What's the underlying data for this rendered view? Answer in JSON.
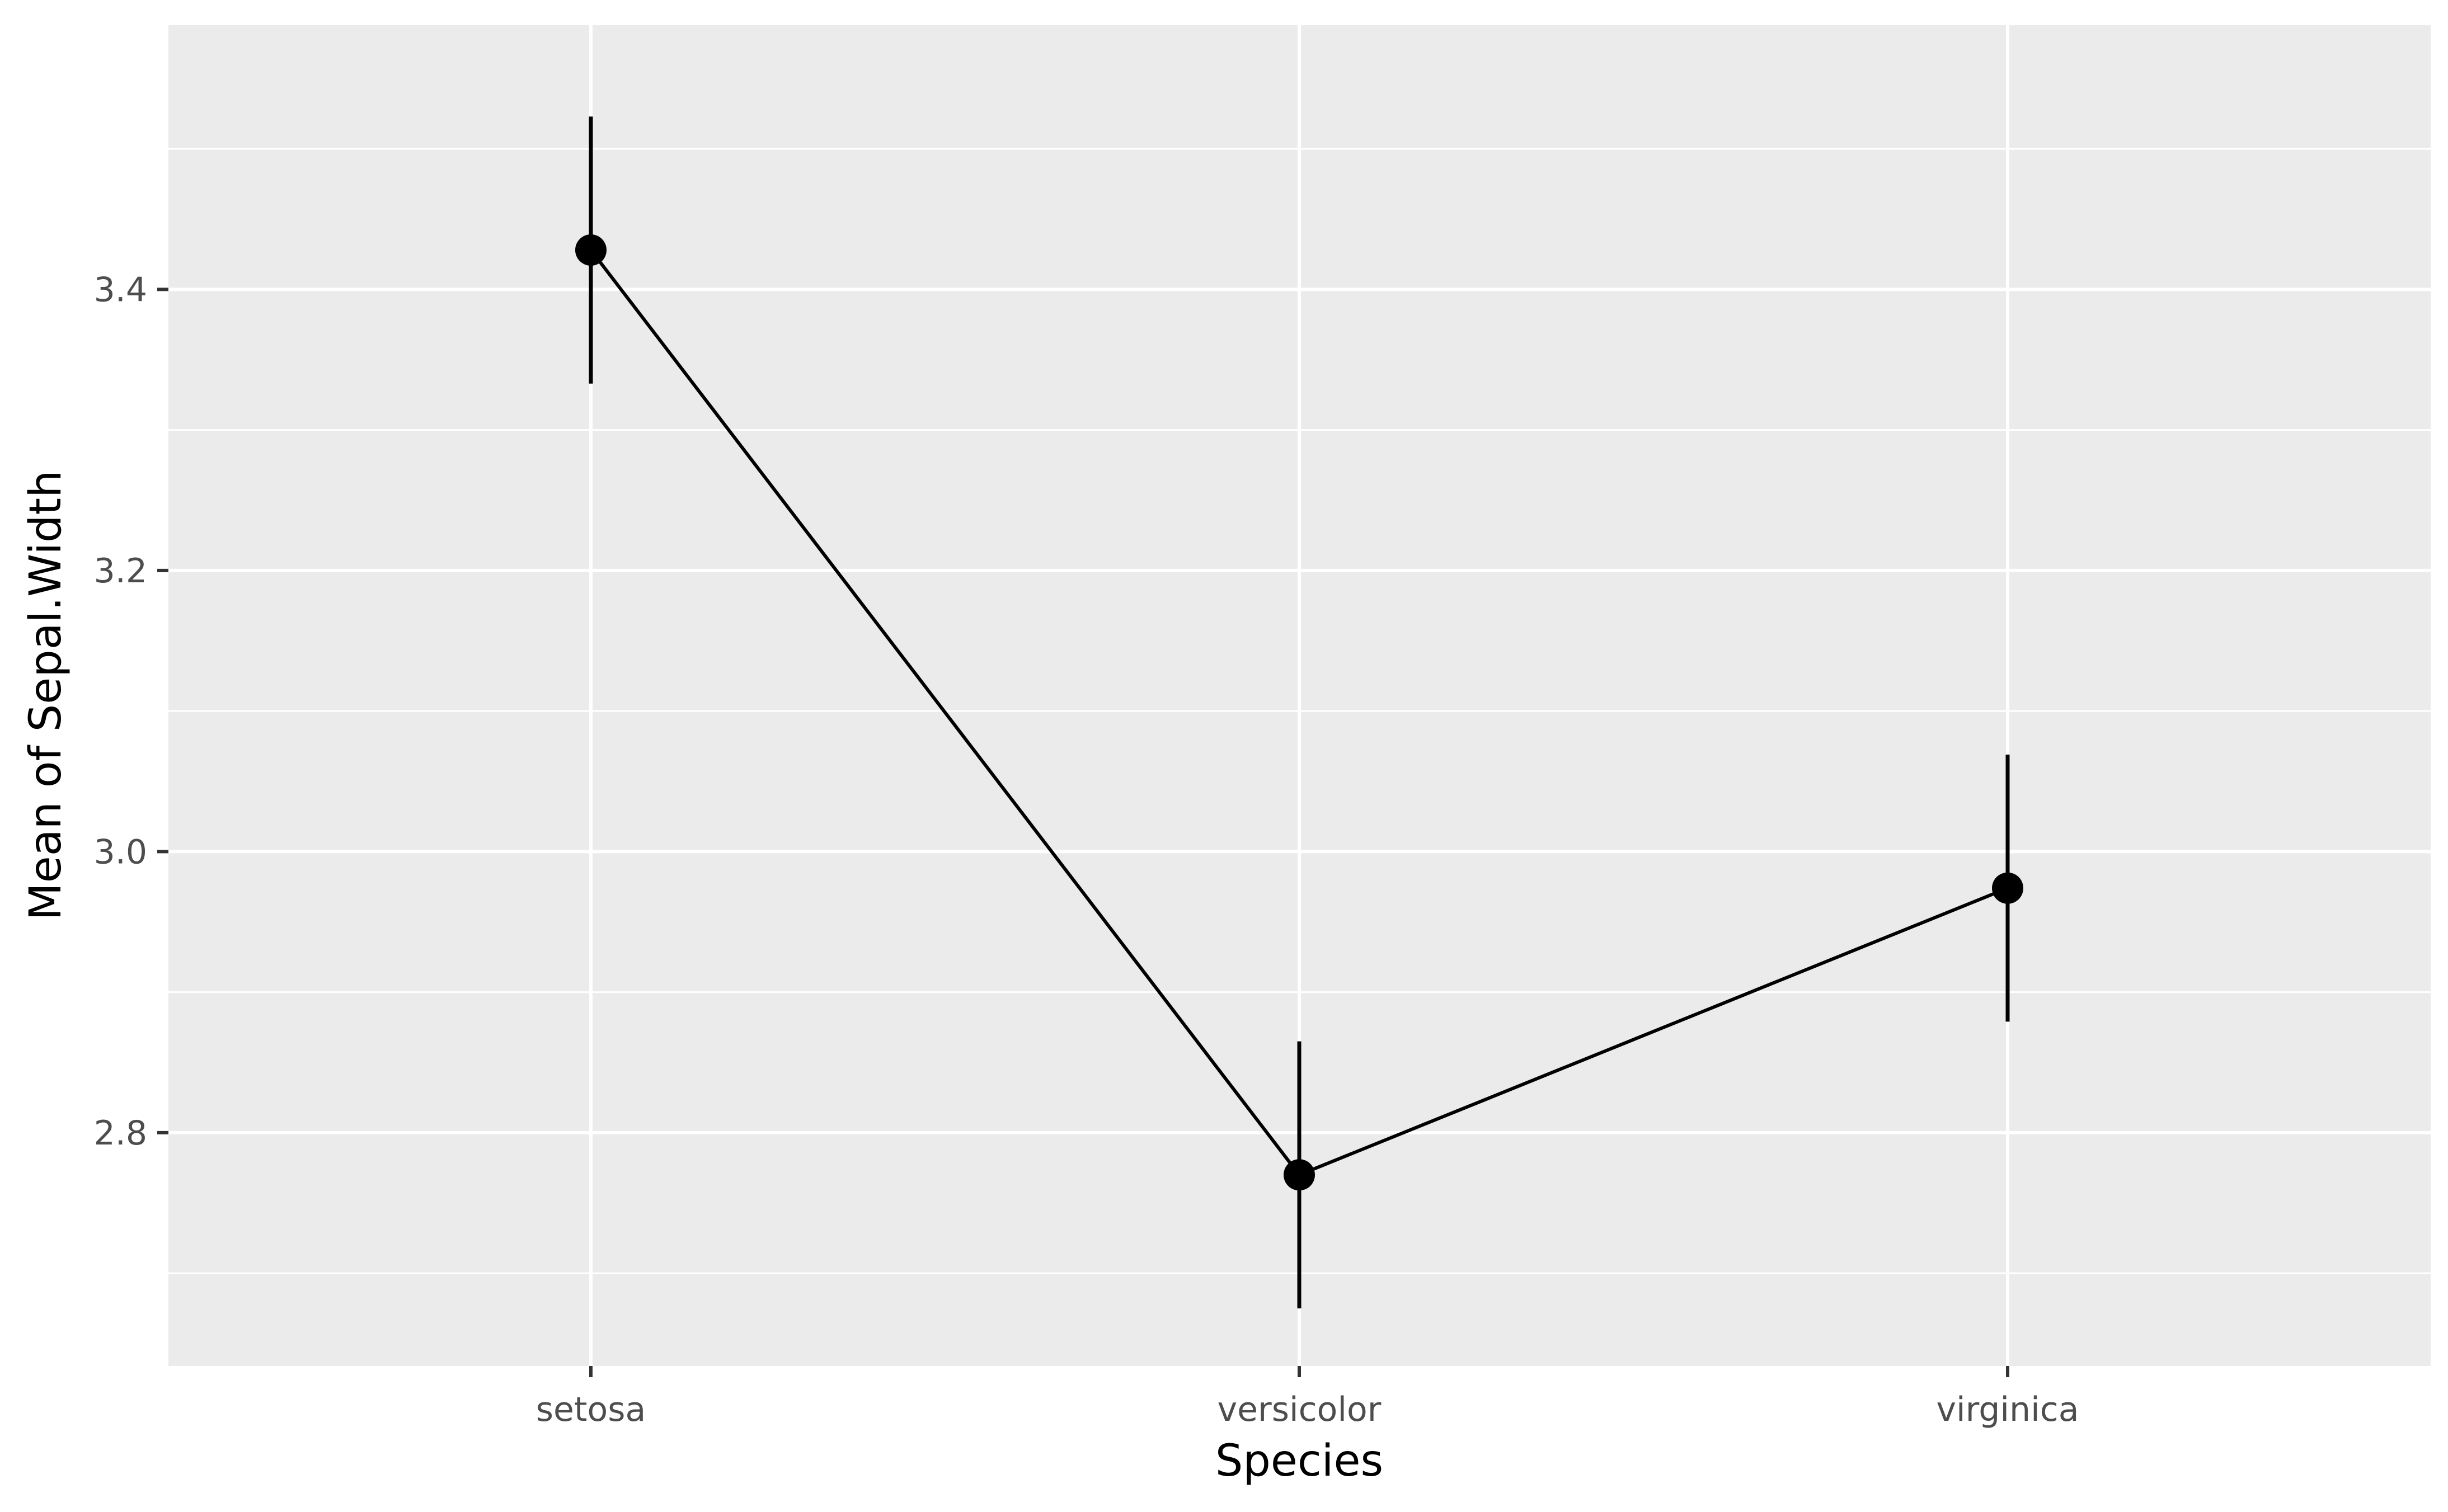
{
  "chart_data": {
    "type": "line",
    "title": "",
    "xlabel": "Species",
    "ylabel": "Mean of Sepal.Width",
    "categories": [
      "setosa",
      "versicolor",
      "virginica"
    ],
    "values": [
      3.428,
      2.77,
      2.974
    ],
    "error_bars": {
      "lower": [
        3.333,
        2.675,
        2.879
      ],
      "upper": [
        3.523,
        2.865,
        3.069
      ]
    },
    "ylim": [
      2.634,
      3.588
    ],
    "y_ticks": [
      2.8,
      3.0,
      3.2,
      3.4
    ],
    "y_tick_labels": [
      "2.8",
      "3.0",
      "3.2",
      "3.4"
    ],
    "grid": true,
    "legend": "none",
    "colors": {
      "panel_background": "#ebebeb",
      "grid": "#ffffff",
      "line": "#000000",
      "point": "#000000",
      "tick_label": "#4d4d4d",
      "axis_title": "#000000"
    }
  }
}
